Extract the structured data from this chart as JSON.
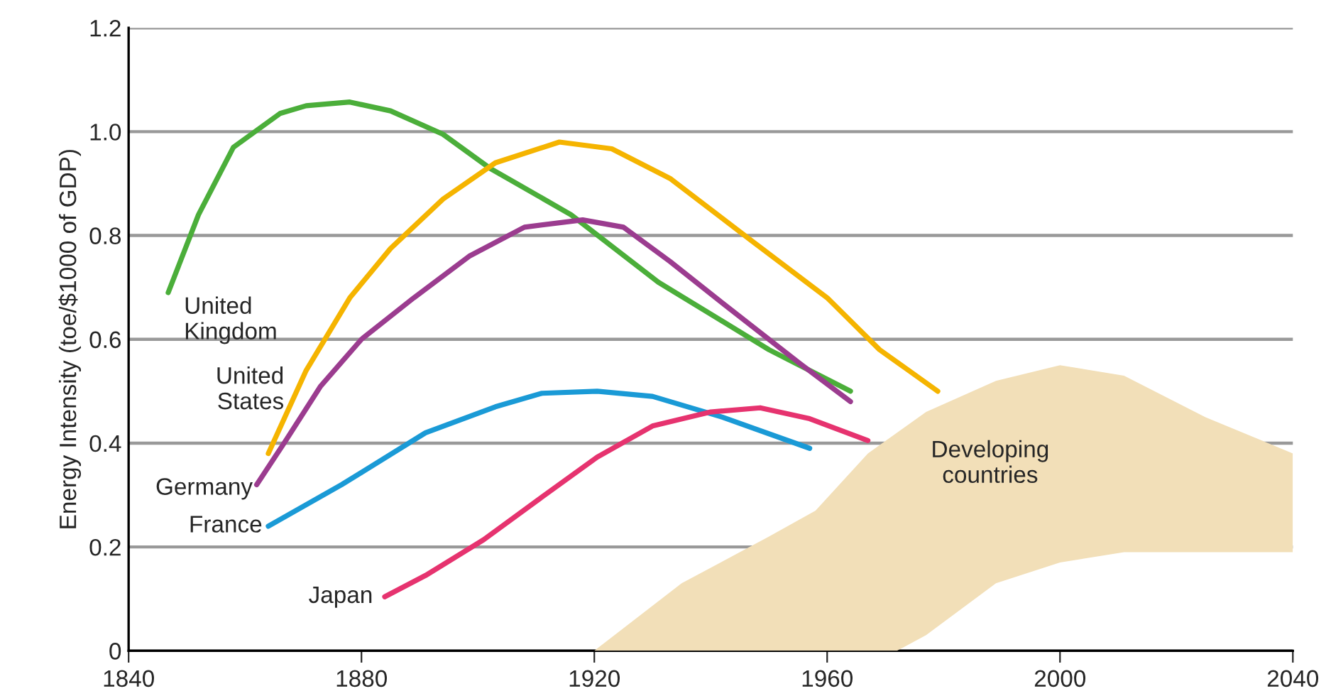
{
  "chart_data": {
    "type": "line",
    "ylabel": "Energy Intensity (toe/$1000 of GDP)",
    "xlim": [
      1840,
      2040
    ],
    "xticks": [
      1840,
      1880,
      1920,
      1960,
      2000,
      2040
    ],
    "ylim": [
      0,
      1.2
    ],
    "yticks": [
      0,
      0.2,
      0.4,
      0.6,
      0.8,
      {
        "value": 1,
        "label": "1.0"
      },
      1.2
    ],
    "grid": "y",
    "legend": false,
    "annotations": [
      "Developing countries"
    ],
    "series": [
      {
        "name": "United Kingdom",
        "color": "#4bae3a",
        "x": [
          1846.8,
          1852,
          1858,
          1866,
          1870.5,
          1878,
          1885,
          1894,
          1902,
          1916,
          1931,
          1950,
          1964
        ],
        "values": [
          0.69,
          0.84,
          0.97,
          1.035,
          1.05,
          1.057,
          1.04,
          0.995,
          0.93,
          0.84,
          0.71,
          0.58,
          0.5
        ]
      },
      {
        "name": "United States",
        "color": "#f5b400",
        "x": [
          1864,
          1870.5,
          1878,
          1885,
          1894,
          1903,
          1914,
          1923,
          1933,
          1947,
          1960,
          1969,
          1979
        ],
        "values": [
          0.38,
          0.54,
          0.68,
          0.775,
          0.87,
          0.94,
          0.98,
          0.967,
          0.91,
          0.79,
          0.68,
          0.58,
          0.5
        ]
      },
      {
        "name": "Germany",
        "color": "#9b3c8f",
        "x": [
          1862,
          1867,
          1873,
          1880,
          1889,
          1898.5,
          1908,
          1918,
          1925,
          1933,
          1942,
          1955,
          1964
        ],
        "values": [
          0.32,
          0.405,
          0.51,
          0.6,
          0.68,
          0.76,
          0.816,
          0.83,
          0.816,
          0.75,
          0.67,
          0.556,
          0.48
        ]
      },
      {
        "name": "France",
        "color": "#1a9ad6",
        "x": [
          1864,
          1876.6,
          1891,
          1903,
          1911,
          1920.5,
          1930,
          1942,
          1957
        ],
        "values": [
          0.24,
          0.32,
          0.42,
          0.47,
          0.496,
          0.5,
          0.49,
          0.45,
          0.39
        ]
      },
      {
        "name": "Japan",
        "color": "#e6336f",
        "x": [
          1884,
          1891,
          1901,
          1911,
          1920.5,
          1930,
          1940,
          1948.5,
          1957,
          1967
        ],
        "values": [
          0.104,
          0.145,
          0.214,
          0.296,
          0.373,
          0.433,
          0.46,
          0.468,
          0.447,
          0.405
        ]
      },
      {
        "type": "area",
        "color": "#f2dfb8",
        "x": [
          1920,
          1935,
          1950,
          1958,
          1967,
          1972,
          1977,
          1989,
          2000,
          2011,
          2025,
          2040
        ],
        "values": [
          null,
          null,
          null,
          null,
          null,
          null,
          null,
          null,
          null,
          null,
          null,
          null
        ],
        "upper": [
          0.0,
          0.13,
          0.22,
          0.27,
          0.38,
          0.42,
          0.46,
          0.52,
          0.55,
          0.53,
          0.45,
          0.38
        ],
        "lower": [
          0,
          0,
          0,
          0,
          0,
          0,
          0.03,
          0.13,
          0.17,
          0.19,
          0.19,
          0.19
        ]
      }
    ]
  }
}
